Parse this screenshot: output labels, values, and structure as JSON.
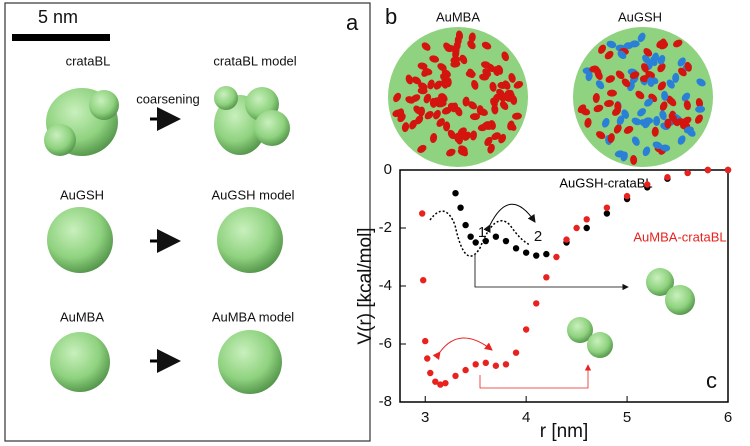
{
  "panel_a": {
    "label": "a",
    "scale_bar": "5 nm",
    "arrow_label": "coarsening",
    "rows": [
      {
        "name": "crataBL",
        "model": "crataBL model"
      },
      {
        "name": "AuGSH",
        "model": "AuGSH model"
      },
      {
        "name": "AuMBA",
        "model": "AuMBA model"
      }
    ]
  },
  "panel_b": {
    "label": "b",
    "particles": [
      "AuMBA",
      "AuGSH"
    ]
  },
  "chart_data": {
    "type": "scatter",
    "panel_label": "c",
    "xlabel": "r [nm]",
    "ylabel": "V(r) [kcal/mol]",
    "xlim": [
      2.75,
      6
    ],
    "ylim": [
      -8,
      0
    ],
    "xticks": [
      3,
      4,
      5,
      6
    ],
    "yticks": [
      0,
      -2,
      -4,
      -6,
      -8
    ],
    "grid": false,
    "series": [
      {
        "name": "AuGSH-crataBL",
        "color": "#000000",
        "x": [
          3.3,
          3.35,
          3.4,
          3.45,
          3.5,
          3.6,
          3.7,
          3.8,
          3.9,
          4.0,
          4.1,
          4.2,
          4.4,
          4.6,
          4.8,
          5.0,
          5.2,
          5.4,
          5.6,
          5.8,
          6.0
        ],
        "values": [
          -0.8,
          -1.3,
          -1.9,
          -2.3,
          -2.5,
          -2.45,
          -2.3,
          -2.45,
          -2.7,
          -2.85,
          -2.95,
          -2.9,
          -2.5,
          -2.0,
          -1.5,
          -1.0,
          -0.6,
          -0.3,
          -0.1,
          0,
          0
        ]
      },
      {
        "name": "AuMBA-crataBL",
        "color": "#e8231f",
        "x": [
          2.97,
          2.98,
          3.0,
          3.02,
          3.05,
          3.1,
          3.15,
          3.2,
          3.3,
          3.4,
          3.5,
          3.6,
          3.7,
          3.8,
          3.9,
          4.0,
          4.1,
          4.2,
          4.3,
          4.4,
          4.5,
          4.6,
          4.8,
          5.0,
          5.2,
          5.4,
          5.6,
          5.8,
          6.0
        ],
        "values": [
          -1.5,
          -3.8,
          -5.9,
          -6.5,
          -7.0,
          -7.3,
          -7.4,
          -7.35,
          -7.1,
          -6.9,
          -6.7,
          -6.65,
          -6.75,
          -6.7,
          -6.3,
          -5.5,
          -4.6,
          -3.7,
          -3.0,
          -2.4,
          -2.0,
          -1.7,
          -1.3,
          -0.9,
          -0.5,
          -0.25,
          -0.1,
          0,
          0
        ]
      }
    ],
    "annotations": [
      "1",
      "2"
    ]
  }
}
